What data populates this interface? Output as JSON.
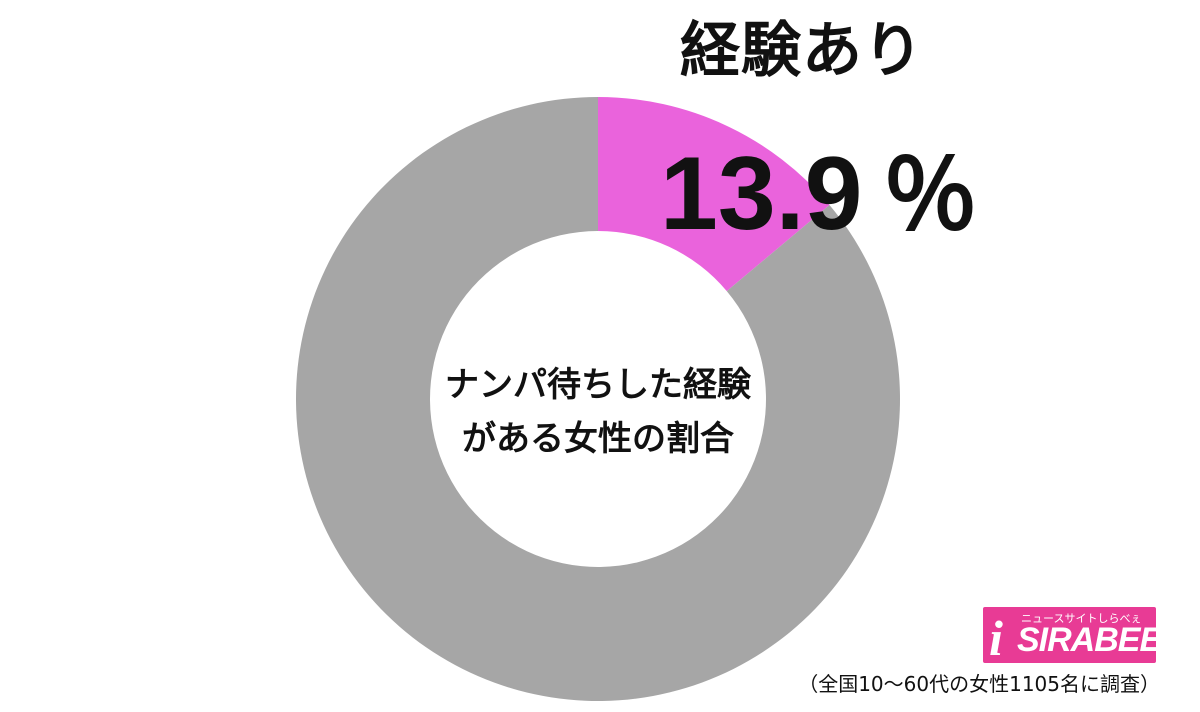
{
  "chart_data": {
    "type": "pie",
    "style": "donut",
    "center_label_lines": [
      "ナンパ待ちした経験",
      "がある女性の割合"
    ],
    "slices": [
      {
        "name": "経験あり",
        "value": 13.9,
        "color": "#ea63dc"
      },
      {
        "name": "",
        "value": 86.1,
        "color": "#a6a6a6"
      }
    ],
    "highlight": {
      "label": "経験あり",
      "value_text": "13.9",
      "unit": "％"
    },
    "legend": "none"
  },
  "logo": {
    "tagline": "ニュースサイトしらべぇ",
    "mark": "i",
    "name": "SIRABEE"
  },
  "footnote": "（全国10～60代の女性1105名に調査）"
}
